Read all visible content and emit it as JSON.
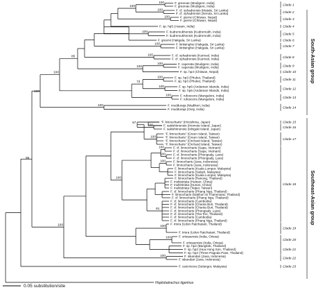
{
  "scale": {
    "label": "0.05 substitution/site"
  },
  "outgroup": "Hoplobatrachus tigerinus",
  "groups": [
    {
      "name": "South-Asian group"
    },
    {
      "name": "Southeast-Asian group"
    }
  ],
  "clades": [
    "Clade 1",
    "Clade 2",
    "Clade 3",
    "Clade 4",
    "Clade 5",
    "Clade 6",
    "Clade 7",
    "Clade 8",
    "Clade 9",
    "Clade 10",
    "Clade 11",
    "Clade 12",
    "Clade 13",
    "Clade 14",
    "Clade 15",
    "Clade 16",
    "Clade 17",
    "Clade 18",
    "Clade 19",
    "Clade 20",
    "Clade 21",
    "Clade 22",
    "Clade 23"
  ],
  "taxa": [
    "F. greenae (Mudigere, India)",
    "F. greenae (Mudigere, India)",
    "F. cf. syhadrensis (Matale, Sri Lanka)",
    "F. cf. syhadrensis (Seruta, Sri Lanka)",
    "F. pierrei (Chitwan, Nepal)",
    "F. pierrei (Chitwan, Nepal)",
    "F. sp. hp5 (Assam, India)",
    "F. kudremukhensis (Kudremukh, India)",
    "F. kudremukhensis (Kudremukh, India)",
    "F. greenii (Hakgala, Sri Lanka)",
    "F. kirtisinghei (Hakgala, Sri Lanka)",
    "F. kirtisinghei (Hakgala, Sri Lanka)",
    "F. cf. syhadrensis (Karnool, India)",
    "F. cf. syhadrensis (Karnool, India)",
    "F. caperata (Mudigere, India)",
    "F. caperata (Mudigere, India)",
    "F. sp. hp4 (Chitwan, Nepal)",
    "F. sp. hp3 (Phuket, Thailand)",
    "F. sp. hp3 (Phuket, Thailand)",
    "F. sp. hp6 (Andaman Islands, India)",
    "F. sp. hp6 (Andaman Islands, India)",
    "F. rufescens (Mangalore, India)",
    "F. rufescens (Mangalore, India)",
    "F. mudduraja (Madikeri, India)",
    "F. mudduraja (Ooty, India)",
    "\"F. limnocharis\" (Hiroshima, Japan)",
    "F. sakishimensis (Iriomote Island, Japan)",
    "F. sakishimensis (Ishigaki Island, Japan)",
    "\"F. limnocharis\" (Green Island, Taiwan)",
    "\"F. limnocharis\" (Green Island, Taiwan)",
    "\"F. limnocharis\" (Orchard Island, Taiwan)",
    "\"F. limnocharis\" (Orchard Island, Taiwan)",
    "F. cf. limnocharis (Sapa, Vietnam)",
    "F. cf. limnocharis (Sapa, Vietnam)",
    "F. cf. limnocharis (Phongsaly, Laos)",
    "F. cf. limnocharis (Phongsaly, Laos)",
    "F. limnocharis (Java, Indonesia)",
    "F. limnocharis (Java, Indonesia)",
    "F. limnocharis (Kuala Lumpur, Malaysia)",
    "F. limnocharis (Sabah, Malaysia)",
    "F. limnocharis (Kuala Lumpur, Malaysia)",
    "F. limnocharis (Ranong, Thailand)",
    "F. multistriata (Hainan, China)",
    "F. multistriata (Hunan, China)",
    "F. multistriata (Taipei, Taiwan)",
    "F. cf. limnocharis (Phang Nga, Thailand)",
    "F. limnocharis (Nakhon Si Thammarat, Thailand)",
    "F. cf. limnocharis (Phang Nga, Thailand)",
    "F. cf. limnocharis (Cambodia)",
    "F. cf. limnocharis (Chanta Buri, Thailand)",
    "F. cf. limnocharis (Chanta Buri, Thailand)",
    "F. cf. limnocharis (Phongsaly, Laos)",
    "F. cf. limnocharis (Tha Ton, Thailand)",
    "F. cf. limnocharis (Cambodia)",
    "F. cf. limnocharis (Phang Nga, Thailand)",
    "F. triora (Udon Ratchatani, Thailand)",
    "F. triora (Udon Ratchatani, Thailand)",
    "F. orissaensis (India, Orissa)",
    "F. orissaensis (India, Orissa)",
    "F. sp. hp2 (Bangkok, Thailand)",
    "F. sp. hp2 (Hua Hong Son, Thailand)",
    "F. sp. hp2 (Three Pagoda Pass, Thailand)",
    "F. iskandari (Java, Indonesia)",
    "F. iskandari (Java, Indonesia)",
    "F. cancrivora (Selangor, Malaysia)"
  ],
  "supports": [
    "100",
    "100",
    "100",
    "100",
    "100",
    "100",
    "100",
    "100",
    "100",
    "85",
    "100",
    "100",
    "100",
    "72",
    "100",
    "100",
    "100",
    "95",
    "100",
    "67",
    "100",
    "100",
    "100",
    "100",
    "100",
    "81",
    "100",
    "100",
    "100",
    "100"
  ]
}
